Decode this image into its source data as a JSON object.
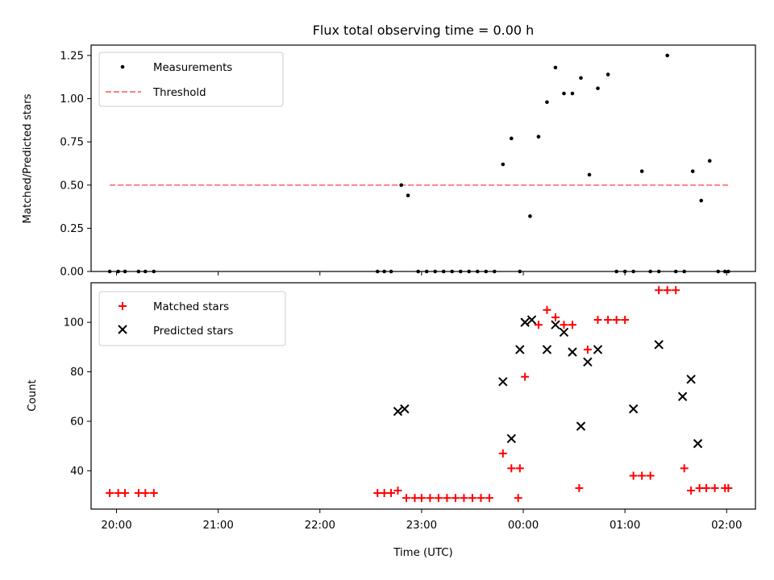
{
  "chart_data": [
    {
      "type": "scatter",
      "title": "Flux total observing time = 0.00 h",
      "ylabel": "Matched/Predicted stars",
      "xlabel": "",
      "ylim": [
        0,
        1.31
      ],
      "xlim": [
        "19:45",
        "02:17"
      ],
      "yticks": [
        "0.00",
        "0.25",
        "0.50",
        "0.75",
        "1.00",
        "1.25"
      ],
      "legend_position": "top-left",
      "grid": false,
      "series": [
        {
          "name": "Measurements",
          "kind": "points",
          "color": "#000000",
          "x": [
            "19:56",
            "20:01",
            "20:05",
            "20:13",
            "20:17",
            "20:22",
            "22:34",
            "22:38",
            "22:42",
            "22:48",
            "22:52",
            "22:58",
            "23:03",
            "23:08",
            "23:13",
            "23:18",
            "23:23",
            "23:28",
            "23:33",
            "23:38",
            "23:43",
            "23:48",
            "23:53",
            "23:58",
            "00:04",
            "00:09",
            "00:14",
            "00:19",
            "00:24",
            "00:29",
            "00:34",
            "00:39",
            "00:44",
            "00:50",
            "00:55",
            "01:00",
            "01:05",
            "01:10",
            "01:15",
            "01:20",
            "01:25",
            "01:30",
            "01:35",
            "01:40",
            "01:45",
            "01:50",
            "01:55",
            "01:59",
            "02:01"
          ],
          "y": [
            0,
            0,
            0,
            0,
            0,
            0,
            0,
            0,
            0,
            0.5,
            0.44,
            0,
            0,
            0,
            0,
            0,
            0,
            0,
            0,
            0,
            0,
            0.62,
            0.77,
            0,
            0.32,
            0.78,
            0.98,
            1.18,
            1.03,
            1.03,
            1.12,
            0.56,
            1.06,
            1.14,
            0,
            0,
            0,
            0.58,
            0,
            0,
            1.25,
            0,
            0,
            0.58,
            0.41,
            0.64,
            0,
            0,
            0
          ]
        },
        {
          "name": "Threshold",
          "kind": "dashed-line",
          "color": "#ff7f7f",
          "x": [
            "19:56",
            "02:01"
          ],
          "y": [
            0.5,
            0.5
          ]
        }
      ]
    },
    {
      "type": "scatter",
      "title": "",
      "ylabel": "Count",
      "xlabel": "Time (UTC)",
      "ylim": [
        24.5,
        116
      ],
      "xlim": [
        "19:45",
        "02:17"
      ],
      "yticks": [
        "40",
        "60",
        "80",
        "100"
      ],
      "xticks": [
        "20:00",
        "21:00",
        "22:00",
        "23:00",
        "00:00",
        "01:00",
        "02:00"
      ],
      "legend_position": "top-left",
      "grid": false,
      "series": [
        {
          "name": "Matched stars",
          "marker": "plus",
          "color": "#ff0000",
          "x": [
            "19:56",
            "20:01",
            "20:05",
            "20:13",
            "20:17",
            "20:22",
            "22:34",
            "22:38",
            "22:42",
            "22:46",
            "22:51",
            "22:56",
            "23:00",
            "23:05",
            "23:10",
            "23:15",
            "23:20",
            "23:25",
            "23:30",
            "23:35",
            "23:40",
            "23:48",
            "23:53",
            "23:58",
            "23:57",
            "00:01",
            "00:09",
            "00:14",
            "00:19",
            "00:24",
            "00:29",
            "00:33",
            "00:38",
            "00:44",
            "00:50",
            "00:55",
            "01:00",
            "01:05",
            "01:10",
            "01:15",
            "01:20",
            "01:25",
            "01:30",
            "01:35",
            "01:39",
            "01:44",
            "01:48",
            "01:53",
            "01:59",
            "02:01"
          ],
          "y": [
            31,
            31,
            31,
            31,
            31,
            31,
            31,
            31,
            31,
            32,
            29,
            29,
            29,
            29,
            29,
            29,
            29,
            29,
            29,
            29,
            29,
            47,
            41,
            41,
            29,
            78,
            99,
            105,
            102,
            99,
            99,
            33,
            89,
            101,
            101,
            101,
            101,
            38,
            38,
            38,
            113,
            113,
            113,
            41,
            32,
            33,
            33,
            33,
            33,
            33
          ]
        },
        {
          "name": "Predicted stars",
          "marker": "x",
          "color": "#000000",
          "x": [
            "22:46",
            "22:50",
            "23:48",
            "23:53",
            "23:58",
            "00:01",
            "00:05",
            "00:14",
            "00:19",
            "00:24",
            "00:29",
            "00:34",
            "00:38",
            "00:44",
            "01:05",
            "01:20",
            "01:34",
            "01:39",
            "01:43"
          ],
          "y": [
            64,
            65,
            76,
            53,
            89,
            100,
            101,
            89,
            99,
            96,
            88,
            58,
            84,
            89,
            65,
            91,
            70,
            77,
            51
          ]
        }
      ]
    }
  ]
}
